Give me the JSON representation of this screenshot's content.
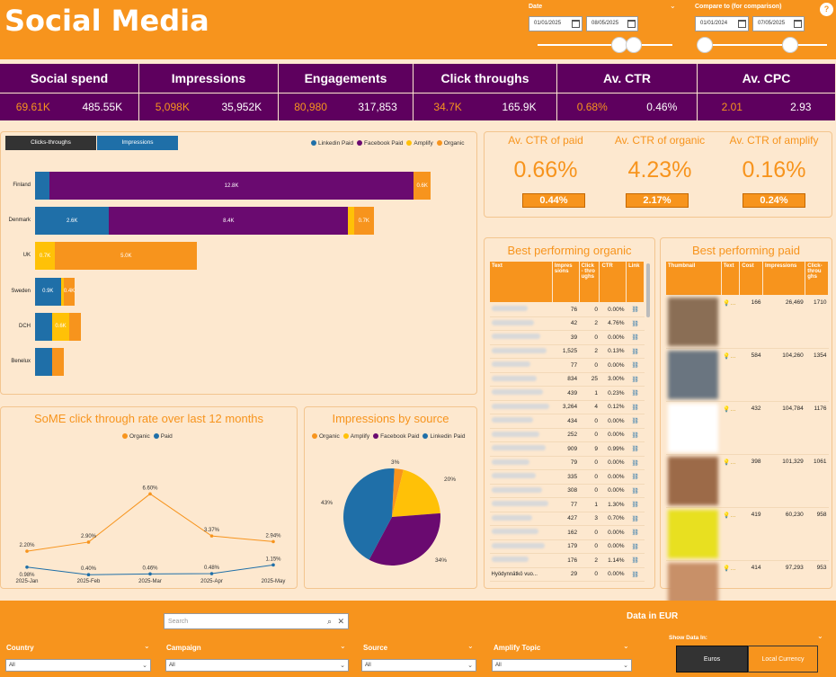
{
  "header": {
    "title": "Social Media",
    "date_label": "Date",
    "date_from": "01/01/2025",
    "date_to": "08/05/2025",
    "compare_label": "Compare to (for comparison)",
    "compare_from": "01/01/2024",
    "compare_to": "07/05/2025",
    "help_glyph": "?"
  },
  "kpis": [
    {
      "label": "Social spend",
      "v1": "69.61K",
      "v2": "485.55K"
    },
    {
      "label": "Impressions",
      "v1": "5,098K",
      "v2": "35,952K"
    },
    {
      "label": "Engagements",
      "v1": "80,980",
      "v2": "317,853"
    },
    {
      "label": "Click throughs",
      "v1": "34.7K",
      "v2": "165.9K"
    },
    {
      "label": "Av. CTR",
      "v1": "0.68%",
      "v2": "0.46%"
    },
    {
      "label": "Av. CPC",
      "v1": "2.01",
      "v2": "2.93"
    }
  ],
  "bar_panel": {
    "tab1": "Clicks-throughs",
    "tab2": "Impressions",
    "legend": [
      {
        "name": "Linkedin Paid",
        "color": "#1f6fa8"
      },
      {
        "name": "Facebook Paid",
        "color": "#6a0a70"
      },
      {
        "name": "Amplify",
        "color": "#ffc107"
      },
      {
        "name": "Organic",
        "color": "#f7941d"
      }
    ]
  },
  "chart_data": [
    {
      "type": "bar",
      "orientation": "horizontal",
      "stacked": true,
      "categories": [
        "Finland",
        "Denmark",
        "UK",
        "Sweden",
        "DCH",
        "Benelux"
      ],
      "series": [
        {
          "name": "Linkedin Paid",
          "values": [
            0.5,
            2.6,
            0,
            0.9,
            0.6,
            0.6
          ]
        },
        {
          "name": "Facebook Paid",
          "values": [
            12.8,
            8.4,
            0,
            0,
            0,
            0
          ]
        },
        {
          "name": "Amplify",
          "values": [
            0,
            0.2,
            0.7,
            0.1,
            0.6,
            0
          ]
        },
        {
          "name": "Organic",
          "values": [
            0.6,
            0.7,
            5.0,
            0.4,
            0.4,
            0.4
          ]
        }
      ],
      "labels": [
        [
          "",
          "12.8K",
          "",
          "0.6K"
        ],
        [
          "2.6K",
          "8.4K",
          "",
          "0.7K"
        ],
        [
          "",
          "",
          "0.7K",
          "5.0K"
        ],
        [
          "0.9K",
          "",
          "",
          "0.4K"
        ],
        [
          "",
          "",
          "0.6K",
          ""
        ],
        [
          "",
          "",
          "",
          ""
        ]
      ]
    },
    {
      "type": "line",
      "title": "SoME click through rate over last 12 months",
      "categories": [
        "2025-Jan",
        "2025-Feb",
        "2025-Mar",
        "2025-Apr",
        "2025-May"
      ],
      "series": [
        {
          "name": "Organic",
          "color": "#f7941d",
          "values": [
            2.2,
            2.9,
            6.6,
            3.37,
            2.94
          ],
          "labels": [
            "2.20%",
            "2.90%",
            "6.60%",
            "3.37%",
            "2.94%"
          ]
        },
        {
          "name": "Paid",
          "color": "#1f6fa8",
          "values": [
            0.98,
            0.4,
            0.46,
            0.48,
            1.15
          ],
          "labels": [
            "0.98%",
            "0.40%",
            "0.46%",
            "0.48%",
            "1.15%"
          ]
        }
      ],
      "ylim": [
        0,
        7
      ]
    },
    {
      "type": "pie",
      "title": "Impressions by source",
      "series": [
        {
          "name": "Organic",
          "value": 3,
          "color": "#f7941d",
          "label": "3%"
        },
        {
          "name": "Amplify",
          "value": 20,
          "color": "#ffc107",
          "label": "20%"
        },
        {
          "name": "Facebook Paid",
          "value": 34,
          "color": "#6a0a70",
          "label": "34%"
        },
        {
          "name": "Linkedin Paid",
          "value": 43,
          "color": "#1f6fa8",
          "label": "43%"
        }
      ]
    }
  ],
  "ctr": {
    "paid_label": "Av. CTR of paid",
    "paid_main": "0.66%",
    "paid_cmp": "0.44%",
    "organic_label": "Av. CTR of organic",
    "organic_main": "4.23%",
    "organic_cmp": "2.17%",
    "amplify_label": "Av. CTR of amplify",
    "amplify_main": "0.16%",
    "amplify_cmp": "0.24%"
  },
  "organic": {
    "title": "Best performing organic",
    "cols": [
      "Text",
      "Impres sions",
      "Click - thro ughs",
      "CTR",
      "Link"
    ],
    "rows": [
      [
        "76",
        "0",
        "0.00%"
      ],
      [
        "42",
        "2",
        "4.76%"
      ],
      [
        "39",
        "0",
        "0.00%"
      ],
      [
        "1,525",
        "2",
        "0.13%"
      ],
      [
        "77",
        "0",
        "0.00%"
      ],
      [
        "834",
        "25",
        "3.00%"
      ],
      [
        "439",
        "1",
        "0.23%"
      ],
      [
        "3,264",
        "4",
        "0.12%"
      ],
      [
        "434",
        "0",
        "0.00%"
      ],
      [
        "252",
        "0",
        "0.00%"
      ],
      [
        "909",
        "9",
        "0.99%"
      ],
      [
        "79",
        "0",
        "0.00%"
      ],
      [
        "335",
        "0",
        "0.00%"
      ],
      [
        "308",
        "0",
        "0.00%"
      ],
      [
        "77",
        "1",
        "1.30%"
      ],
      [
        "427",
        "3",
        "0.70%"
      ],
      [
        "162",
        "0",
        "0.00%"
      ],
      [
        "179",
        "0",
        "0.00%"
      ],
      [
        "176",
        "2",
        "1.14%"
      ],
      [
        "29",
        "0",
        "0.00%"
      ]
    ],
    "last_text": "Hyödynnätkö vuo..."
  },
  "paid": {
    "title": "Best performing paid",
    "cols": [
      "Thumbnail",
      "Text",
      "Cost",
      "Impressions",
      "Click- throu ghs"
    ],
    "rows": [
      [
        "166",
        "26,469",
        "1710"
      ],
      [
        "584",
        "104,260",
        "1354"
      ],
      [
        "432",
        "104,784",
        "1176"
      ],
      [
        "398",
        "101,329",
        "1061"
      ],
      [
        "419",
        "60,230",
        "958"
      ],
      [
        "414",
        "97,293",
        "953"
      ]
    ]
  },
  "footer": {
    "search_placeholder": "Search",
    "data_in": "Data in EUR",
    "show_data_in": "Show Data In:",
    "btn_euros": "Euros",
    "btn_local": "Local Currency",
    "filters": [
      {
        "label": "Country",
        "value": "All"
      },
      {
        "label": "Campaign",
        "value": "All"
      },
      {
        "label": "Source",
        "value": "All"
      },
      {
        "label": "Amplify Topic",
        "value": "All"
      }
    ]
  }
}
